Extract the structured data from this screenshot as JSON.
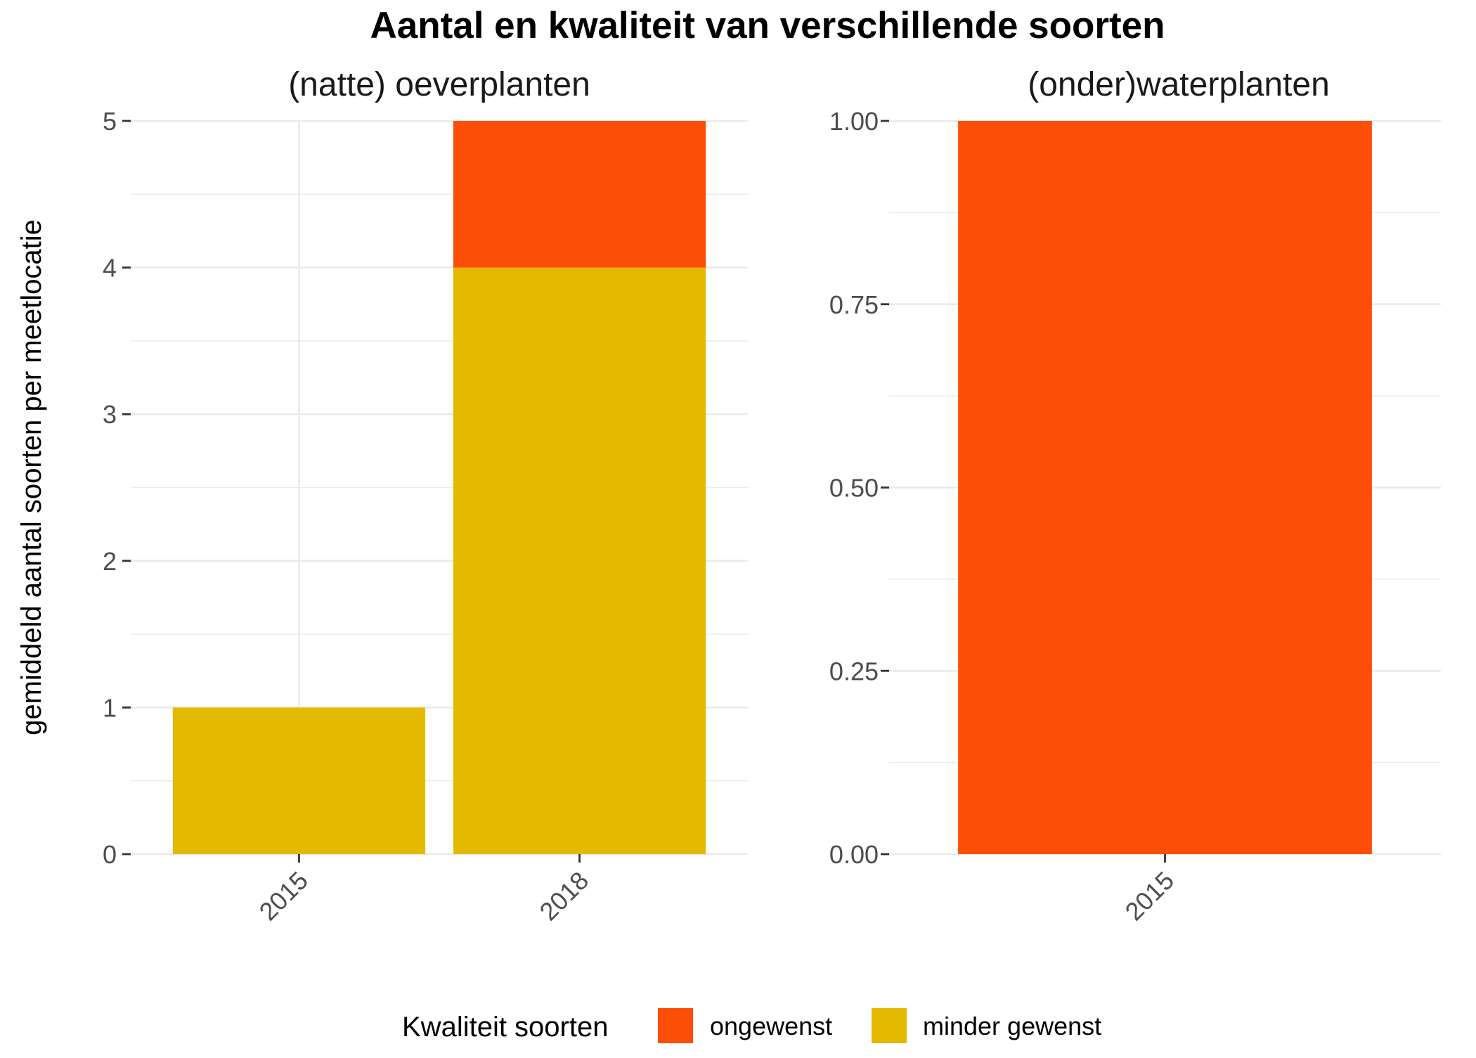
{
  "chart_data": {
    "type": "bar",
    "stacked": true,
    "title": "Aantal en kwaliteit van verschillende soorten",
    "ylabel": "gemiddeld aantal soorten per meetlocatie",
    "legend": {
      "title": "Kwaliteit soorten",
      "placement": "bottom",
      "entries": [
        {
          "name": "ongewenst",
          "color": "#FC4E07"
        },
        {
          "name": "minder gewenst",
          "color": "#E4BA00"
        }
      ]
    },
    "grid": true,
    "panels": [
      {
        "title": "(natte) oeverplanten",
        "categories": [
          "2015",
          "2018"
        ],
        "ylim": [
          0,
          5
        ],
        "yticks": [
          "0",
          "1",
          "2",
          "3",
          "4",
          "5"
        ],
        "ytick_values": [
          0,
          1,
          2,
          3,
          4,
          5
        ],
        "series": [
          {
            "name": "minder gewenst",
            "values": [
              1,
              4
            ]
          },
          {
            "name": "ongewenst",
            "values": [
              0,
              1
            ]
          }
        ]
      },
      {
        "title": "(onder)waterplanten",
        "categories": [
          "2015"
        ],
        "ylim": [
          0,
          1
        ],
        "yticks": [
          "0.00",
          "0.25",
          "0.50",
          "0.75",
          "1.00"
        ],
        "ytick_values": [
          0,
          0.25,
          0.5,
          0.75,
          1
        ],
        "series": [
          {
            "name": "minder gewenst",
            "values": [
              0
            ]
          },
          {
            "name": "ongewenst",
            "values": [
              1
            ]
          }
        ]
      }
    ]
  }
}
